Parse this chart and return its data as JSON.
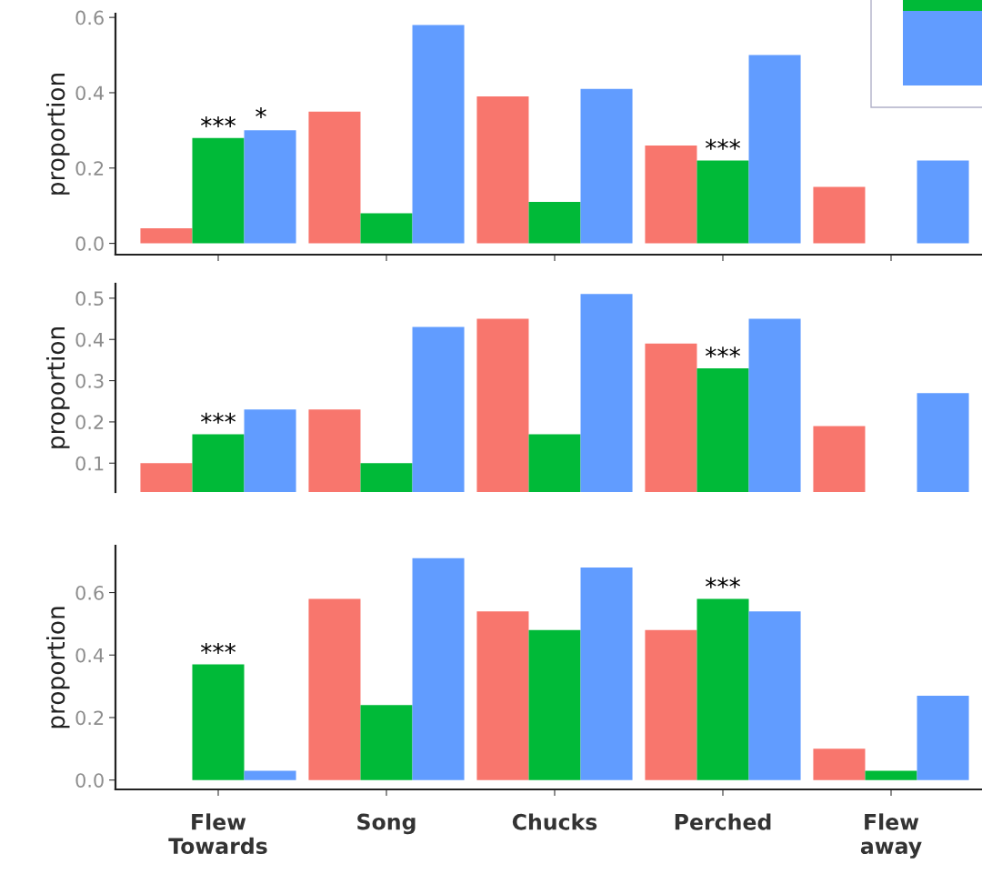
{
  "chart_data": [
    {
      "type": "bar",
      "ylabel": "proportion",
      "categories": [
        "Flew\nTowards",
        "Song",
        "Chucks",
        "Perched",
        "Flew\naway"
      ],
      "tick_labels": "y",
      "ylim": [
        -0.03,
        0.61
      ],
      "yticks": [
        {
          "value": 0,
          "label": "0.0"
        },
        0.2,
        0.4,
        0.6
      ],
      "series": [
        {
          "color": "#f8766d",
          "values": [
            0.04,
            0.35,
            0.39,
            0.26,
            0.15
          ]
        },
        {
          "color": "#00ba38",
          "values": [
            0.28,
            0.08,
            0.11,
            0.22,
            0
          ]
        },
        {
          "color": "#619cff",
          "values": [
            0.3,
            0.58,
            0.41,
            0.5,
            0.22
          ]
        }
      ],
      "annotations": [
        {
          "text": "***",
          "x": "Flew\nTowards",
          "y": 0.28
        },
        "*",
        {
          "text": "***",
          "x": "Perched",
          "y": 0.22
        }
      ]
    },
    {
      "type": "bar",
      "ylabel": "proportion",
      "categories": [
        "Flew\nTowards",
        "Song",
        "Chucks",
        "Perched",
        "Flew\naway"
      ],
      "tick_labels": "y",
      "ylim": [
        0.03,
        0.535
      ],
      "yticks": [
        0.1,
        0.2,
        0.3,
        0.4,
        0.5
      ],
      "series": [
        {
          "color": "#f8766d",
          "values": [
            0.1,
            0.23,
            0.45,
            0.39,
            0.19
          ]
        },
        {
          "color": "#00ba38",
          "values": [
            0.17,
            0.1,
            0.17,
            0.33,
            null
          ]
        },
        {
          "color": "#619cff",
          "values": [
            0.23,
            0.43,
            0.51,
            0.45,
            0.27
          ]
        }
      ],
      "annotations": [
        {
          "text": "***",
          "x": "Flew\nTowards",
          "y": 0.17
        },
        {
          "text": "***",
          "x": "Perched",
          "y": 0.33
        }
      ]
    },
    {
      "type": "bar",
      "ylabel": "proportion",
      "categories": [
        "Flew\nTowards",
        "Song",
        "Chucks",
        "Perched",
        "Flew\naway"
      ],
      "ylim": [
        -0.03,
        0.75
      ],
      "yticks": [
        {
          "value": 0,
          "label": "0.0"
        },
        0.2,
        0.4,
        0.6
      ],
      "series": [
        {
          "color": "#f8766d",
          "values": [
            0,
            0.58,
            0.54,
            0.48,
            0.1
          ]
        },
        {
          "color": "#00ba38",
          "values": [
            0.37,
            0.24,
            0.48,
            0.58,
            0.03
          ]
        },
        {
          "color": "#619cff",
          "values": [
            0.03,
            0.71,
            0.68,
            0.54,
            0.27
          ]
        }
      ],
      "annotations": [
        {
          "text": "***",
          "x": "Flew\nTowards",
          "y": 0.37
        },
        {
          "text": "***",
          "x": "Perched",
          "y": 0.58
        }
      ]
    }
  ]
}
